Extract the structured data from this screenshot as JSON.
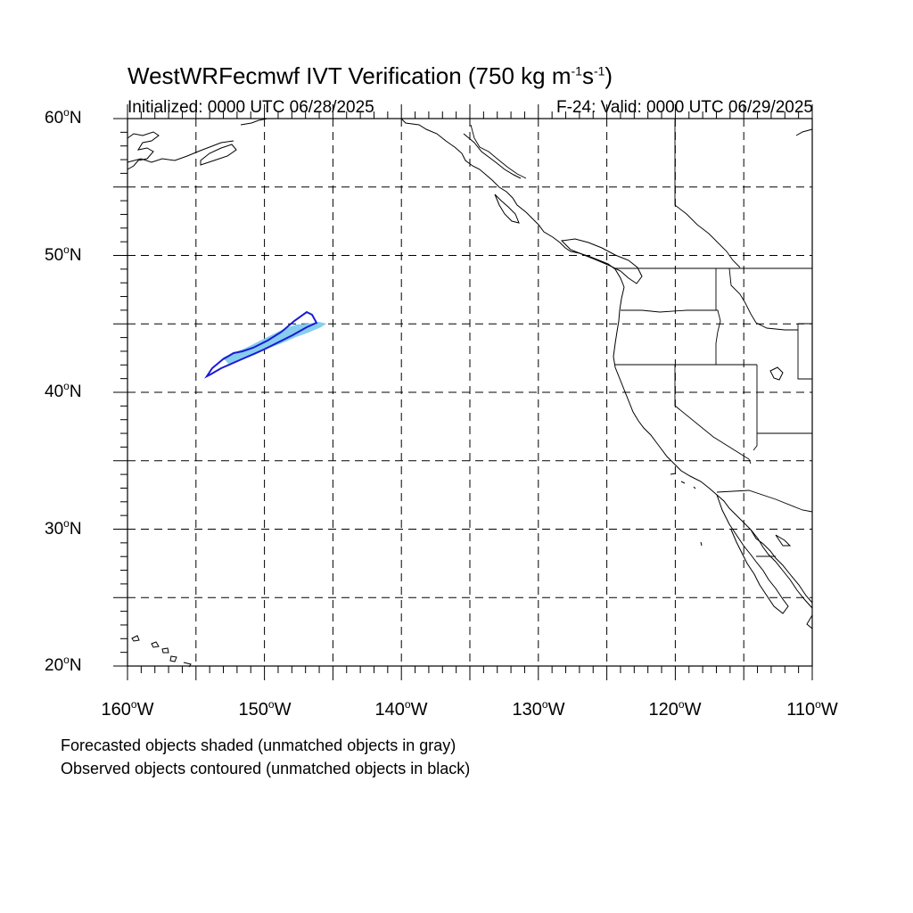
{
  "title": {
    "main": "WestWRFecmwf IVT Verification (750 kg m",
    "exp1": "-1",
    "mid": "s",
    "exp2": "-1",
    "end": ")"
  },
  "initialized": "Initialized: 0000 UTC 06/28/2025",
  "valid": "F-24: Valid: 0000 UTC 06/29/2025",
  "lat_labels": [
    {
      "value": "60",
      "suffix": "N"
    },
    {
      "value": "50",
      "suffix": "N"
    },
    {
      "value": "40",
      "suffix": "N"
    },
    {
      "value": "30",
      "suffix": "N"
    },
    {
      "value": "20",
      "suffix": "N"
    }
  ],
  "lon_labels": [
    {
      "value": "160",
      "suffix": "W"
    },
    {
      "value": "150",
      "suffix": "W"
    },
    {
      "value": "140",
      "suffix": "W"
    },
    {
      "value": "130",
      "suffix": "W"
    },
    {
      "value": "120",
      "suffix": "W"
    },
    {
      "value": "110",
      "suffix": "W"
    }
  ],
  "degree_symbol": "o",
  "footnotes": [
    "Forecasted objects shaded (unmatched objects in gray)",
    "Observed objects contoured (unmatched objects in black)"
  ],
  "colors": {
    "forecast_fill": "#87cdee",
    "observed_contour": "#1a1ad6",
    "coastline": "#000000",
    "grid": "#000000"
  }
}
